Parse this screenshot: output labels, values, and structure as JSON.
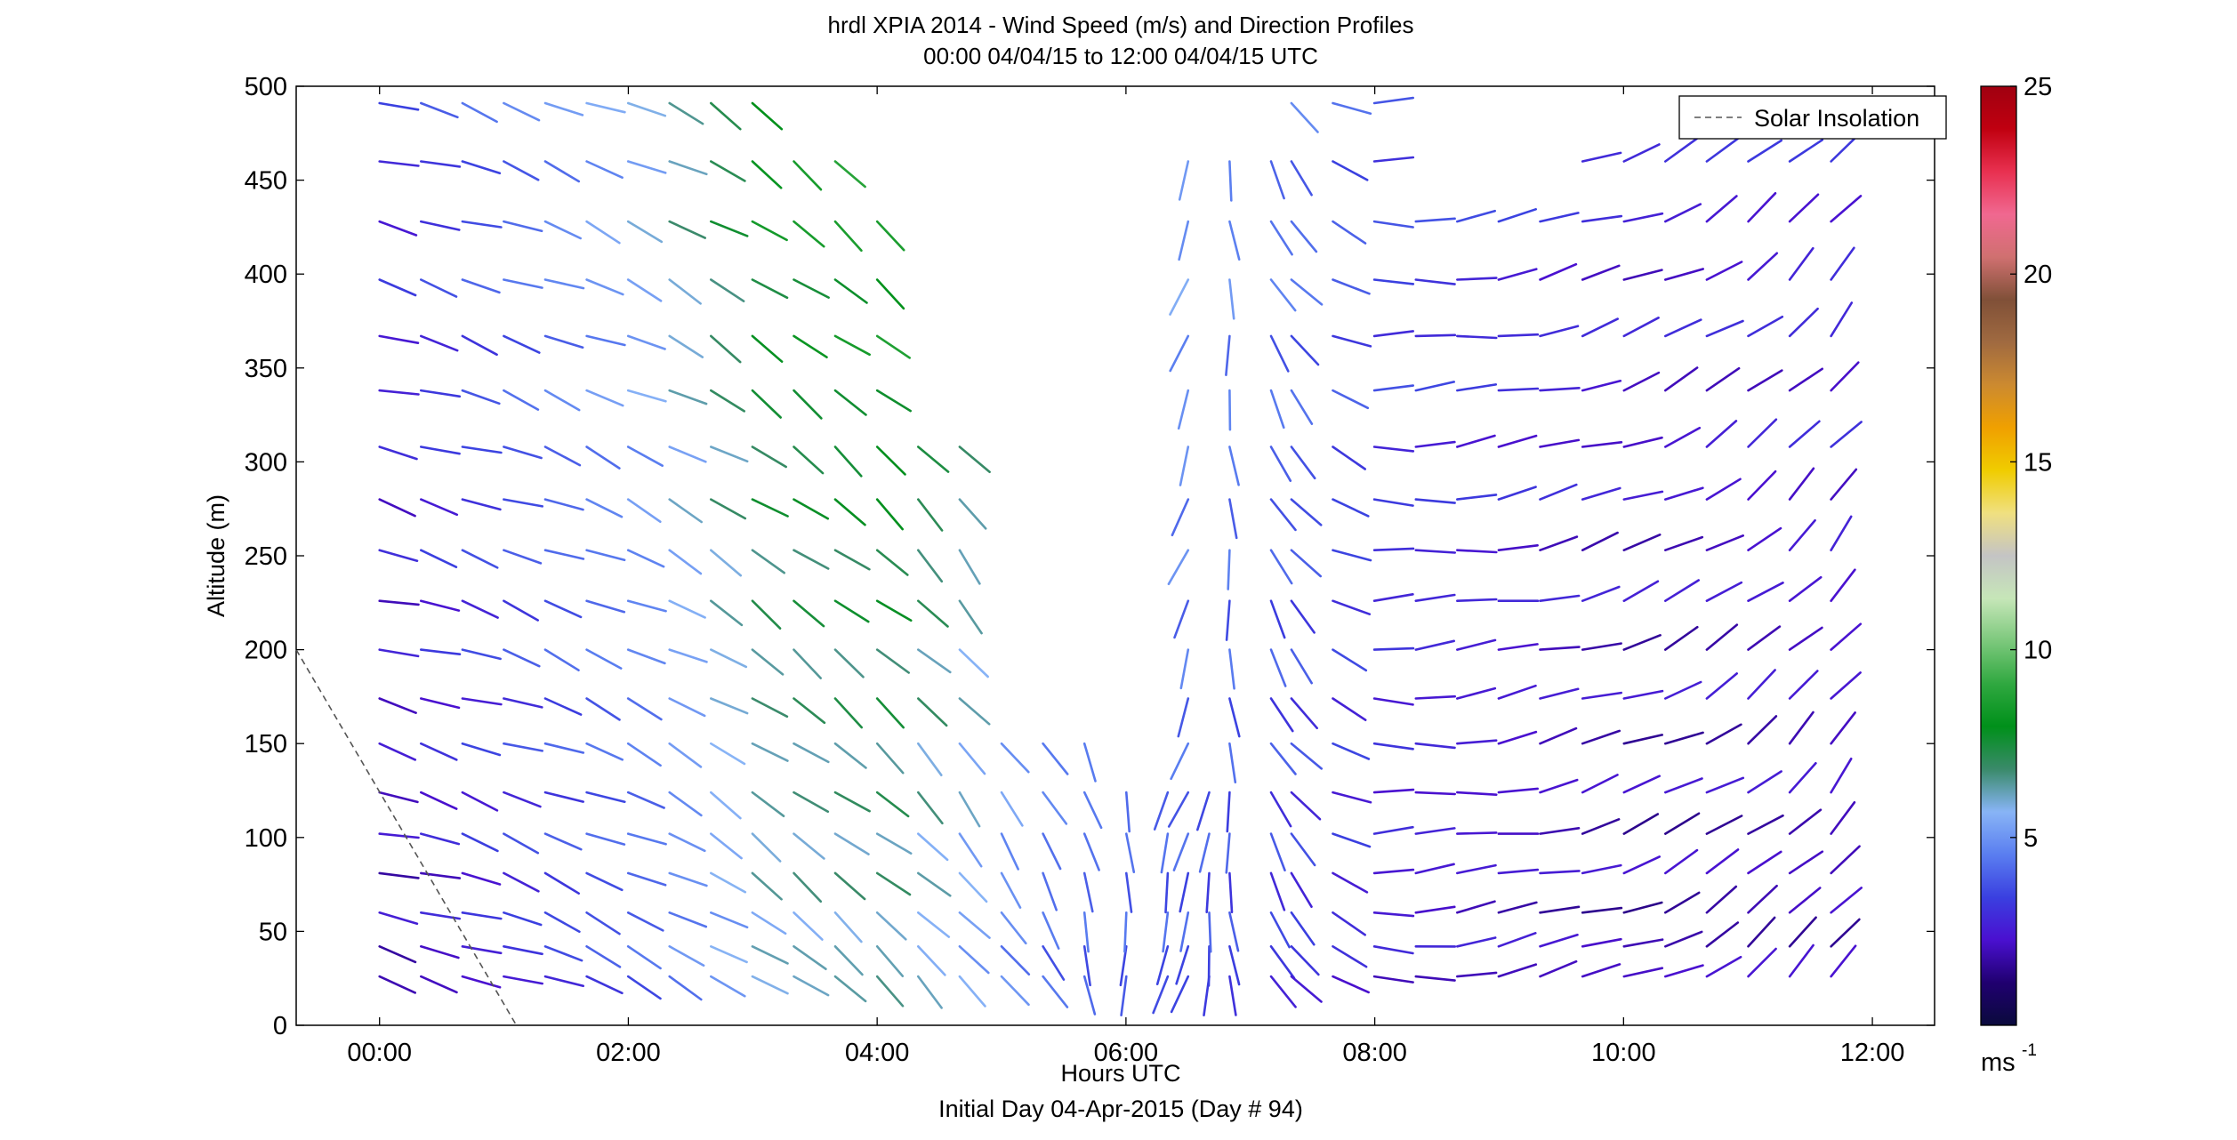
{
  "chart_data": {
    "type": "wind_barb_profile",
    "title": "hrdl XPIA 2014 - Wind Speed (m/s) and Direction Profiles",
    "subtitle": "00:00 04/04/15 to 12:00 04/04/15  UTC",
    "xlabel": "Hours UTC",
    "xlabel2": "Initial Day 04-Apr-2015 (Day # 94)",
    "ylabel": "Altitude (m)",
    "xlim_hours": [
      -0.67,
      12.5
    ],
    "ylim": [
      0,
      500
    ],
    "xticks": [
      0,
      2,
      4,
      6,
      8,
      10,
      12
    ],
    "xtick_labels": [
      "00:00",
      "02:00",
      "04:00",
      "06:00",
      "08:00",
      "10:00",
      "12:00"
    ],
    "yticks": [
      0,
      50,
      100,
      150,
      200,
      250,
      300,
      350,
      400,
      450,
      500
    ],
    "ytick_labels": [
      "0",
      "50",
      "100",
      "150",
      "200",
      "250",
      "300",
      "350",
      "400",
      "450",
      "500"
    ],
    "legend": {
      "label": "Solar Insolation",
      "position": "top-right",
      "line_style": "dashed",
      "color": "#555555"
    },
    "solar_insolation_line": {
      "x": [
        -0.67,
        1.1
      ],
      "y": [
        200,
        0
      ]
    },
    "colorbar": {
      "min": 0,
      "max": 25,
      "ticks": [
        5,
        10,
        15,
        20,
        25
      ],
      "tick_labels": [
        "5",
        "10",
        "15",
        "20",
        "25"
      ],
      "unit_label": "ms",
      "unit_exponent": "-1",
      "colors": [
        "#0a0a3c",
        "#200070",
        "#4a10d0",
        "#3a40e0",
        "#5a7ef0",
        "#88b4f6",
        "#3a8a6a",
        "#00901a",
        "#30a840",
        "#7cc87c",
        "#c6e6b8",
        "#c4c4c4",
        "#f0e080",
        "#f0cc00",
        "#f0a000",
        "#cc8a30",
        "#a06a40",
        "#805038",
        "#d07070",
        "#f06890",
        "#e83050",
        "#c00010",
        "#a00010"
      ]
    },
    "altitudes": [
      26,
      42,
      60,
      81,
      102,
      124,
      150,
      174,
      200,
      226,
      253,
      280,
      308,
      338,
      367,
      397,
      428,
      460,
      491
    ],
    "time_step_hours": 0.333,
    "profile_blocks": [
      {
        "t_start": 0.0,
        "t_end": 3.0,
        "max_alt": 491
      },
      {
        "t_start": 3.33,
        "t_end": 3.67,
        "max_alt": 460
      },
      {
        "t_start": 4.0,
        "t_end": 4.0,
        "max_alt": 428
      },
      {
        "t_start": 4.33,
        "t_end": 4.83,
        "max_alt": 308
      },
      {
        "t_start": 5.0,
        "t_end": 5.67,
        "max_alt": 150
      },
      {
        "t_start": 5.67,
        "t_end": 6.67,
        "max_alt": 124
      },
      {
        "t_start": 6.5,
        "t_end": 7.33,
        "max_alt": 460
      },
      {
        "t_start": 7.33,
        "t_end": 8.0,
        "max_alt": 491
      },
      {
        "t_start": 8.33,
        "t_end": 9.33,
        "max_alt": 428
      },
      {
        "t_start": 9.67,
        "t_end": 12.0,
        "max_alt": 460
      }
    ],
    "speed_pattern_ms": [
      {
        "t": 0.0,
        "speed": 2.5,
        "direction_deg": 285
      },
      {
        "t": 2.0,
        "speed": 4.8,
        "direction_deg": 295
      },
      {
        "t": 3.0,
        "speed": 7.0,
        "direction_deg": 305
      },
      {
        "t": 4.0,
        "speed": 7.5,
        "direction_deg": 310
      },
      {
        "t": 5.33,
        "speed": 5.0,
        "direction_deg": 330
      },
      {
        "t": 6.5,
        "speed": 4.5,
        "direction_deg": 20
      },
      {
        "t": 8.0,
        "speed": 3.0,
        "direction_deg": 270
      },
      {
        "t": 10.0,
        "speed": 2.2,
        "direction_deg": 250
      },
      {
        "t": 12.0,
        "speed": 2.5,
        "direction_deg": 215
      }
    ]
  }
}
